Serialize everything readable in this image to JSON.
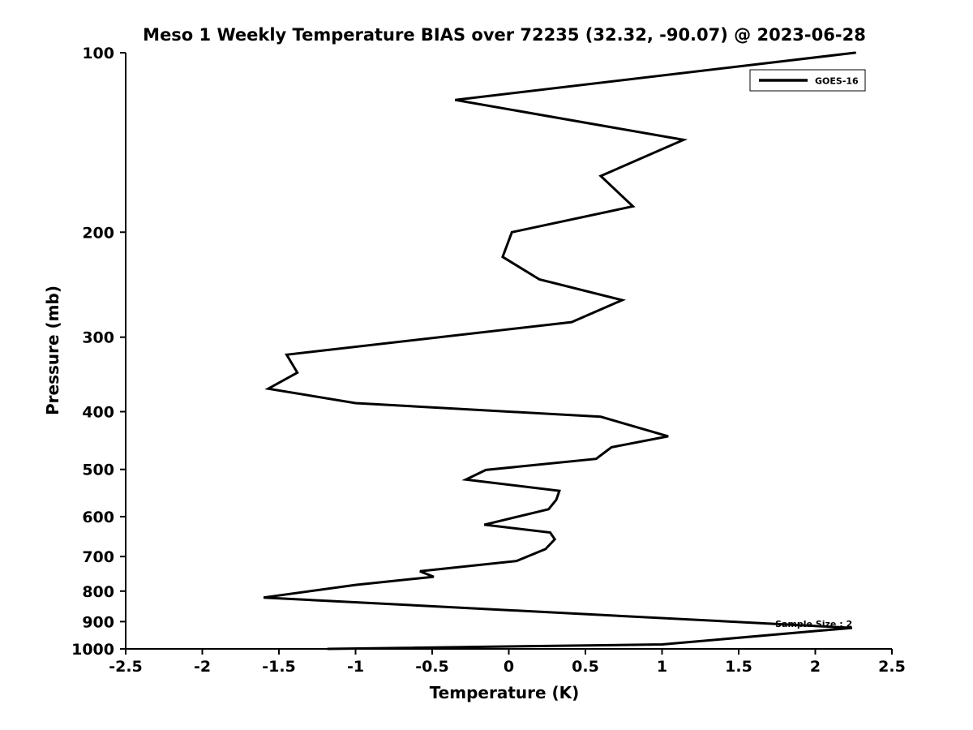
{
  "figure": {
    "background": "#ffffff",
    "line_color": "#000000"
  },
  "chart_data": {
    "type": "line",
    "title": "Meso 1 Weekly Temperature BIAS over 72235 (32.32, -90.07) @ 2023-06-28",
    "xlabel": "Temperature (K)",
    "ylabel": "Pressure (mb)",
    "xlim": [
      -2.5,
      2.5
    ],
    "ylim": [
      100,
      1000
    ],
    "y_scale": "log",
    "y_inverted": true,
    "grid": false,
    "x_ticks": [
      -2.5,
      -2,
      -1.5,
      -1,
      -0.5,
      0,
      0.5,
      1,
      1.5,
      2,
      2.5
    ],
    "x_tick_labels": [
      "-2.5",
      "-2",
      "-1.5",
      "-1",
      "-0.5",
      "0",
      "0.5",
      "1",
      "1.5",
      "2",
      "2.5"
    ],
    "y_ticks": [
      100,
      200,
      300,
      400,
      500,
      600,
      700,
      800,
      900,
      1000
    ],
    "y_tick_labels": [
      "100",
      "200",
      "300",
      "400",
      "500",
      "600",
      "700",
      "800",
      "900",
      "1000"
    ],
    "legend": {
      "position": "top-right",
      "entries": [
        {
          "label": "GOES-16",
          "color": "#000000"
        }
      ]
    },
    "annotation": {
      "text": "Sample Size : 2",
      "t": 1.99,
      "p": 908
    },
    "series": [
      {
        "name": "GOES-16",
        "color": "#000000",
        "line_width": 3,
        "points_format": "[temperature_K, pressure_mb]",
        "points": [
          [
            2.26,
            100
          ],
          [
            -0.35,
            120
          ],
          [
            1.14,
            140
          ],
          [
            0.6,
            161
          ],
          [
            0.81,
            181
          ],
          [
            0.02,
            200
          ],
          [
            -0.04,
            220
          ],
          [
            0.2,
            240
          ],
          [
            0.74,
            260
          ],
          [
            0.41,
            283
          ],
          [
            -1.45,
            321
          ],
          [
            -1.38,
            344
          ],
          [
            -1.57,
            366
          ],
          [
            -1.0,
            387
          ],
          [
            0.6,
            408
          ],
          [
            1.04,
            440
          ],
          [
            0.67,
            459
          ],
          [
            0.57,
            480
          ],
          [
            -0.15,
            501
          ],
          [
            -0.28,
            520
          ],
          [
            0.33,
            543
          ],
          [
            0.31,
            562
          ],
          [
            0.26,
            583
          ],
          [
            -0.16,
            619
          ],
          [
            0.27,
            638
          ],
          [
            0.3,
            655
          ],
          [
            0.24,
            680
          ],
          [
            0.05,
            712
          ],
          [
            -0.58,
            741
          ],
          [
            -0.49,
            757
          ],
          [
            -1.0,
            781
          ],
          [
            -1.6,
            820
          ],
          [
            2.24,
            922
          ],
          [
            1.0,
            983
          ],
          [
            -1.18,
            1000
          ]
        ]
      }
    ]
  }
}
